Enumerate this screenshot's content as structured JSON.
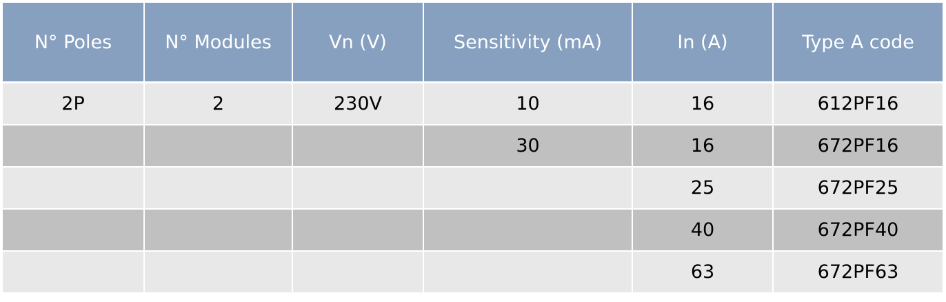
{
  "colors": {
    "header_bg": "#87a0bf",
    "header_text": "#ffffff",
    "row_light": "#e8e8e8",
    "row_dark": "#c0c0c0"
  },
  "table": {
    "headers": [
      "N° Poles",
      "N° Modules",
      "Vn (V)",
      "Sensitivity (mA)",
      "In (A)",
      "Type A code"
    ],
    "rows": [
      [
        "2P",
        "2",
        "230V",
        "10",
        "16",
        "612PF16"
      ],
      [
        "",
        "",
        "",
        "30",
        "16",
        "672PF16"
      ],
      [
        "",
        "",
        "",
        "",
        "25",
        "672PF25"
      ],
      [
        "",
        "",
        "",
        "",
        "40",
        "672PF40"
      ],
      [
        "",
        "",
        "",
        "",
        "63",
        "672PF63"
      ]
    ]
  }
}
